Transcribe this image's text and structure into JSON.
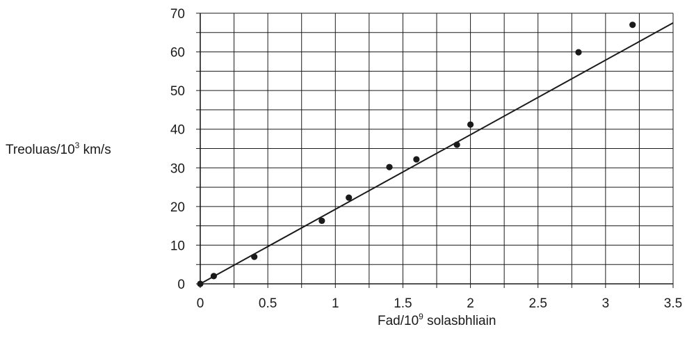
{
  "chart_data": {
    "type": "scatter",
    "title": "",
    "xlabel": {
      "prefix": "Fad/10",
      "sup": "9",
      "suffix": " solasbhliain"
    },
    "ylabel": {
      "prefix": "Treoluas/10",
      "sup": "3",
      "suffix": " km/s"
    },
    "xlim": [
      0,
      3.5
    ],
    "ylim": [
      0,
      70
    ],
    "x_ticks": [
      0,
      0.5,
      1,
      1.5,
      2,
      2.5,
      3,
      3.5
    ],
    "x_tick_labels": [
      "0",
      "0.5",
      "1",
      "1.5",
      "2",
      "2.5",
      "3",
      "3.5"
    ],
    "y_ticks": [
      0,
      10,
      20,
      30,
      40,
      50,
      60,
      70
    ],
    "y_tick_labels": [
      "0",
      "10",
      "20",
      "30",
      "40",
      "50",
      "60",
      "70"
    ],
    "grid": true,
    "x_minor_step": 0.25,
    "y_minor_step": 5,
    "points": [
      {
        "x": 0,
        "y": 0
      },
      {
        "x": 0.1,
        "y": 2
      },
      {
        "x": 0.4,
        "y": 7
      },
      {
        "x": 0.9,
        "y": 16.3
      },
      {
        "x": 1.1,
        "y": 22.3
      },
      {
        "x": 1.4,
        "y": 30.2
      },
      {
        "x": 1.6,
        "y": 32.2
      },
      {
        "x": 1.9,
        "y": 36
      },
      {
        "x": 2.0,
        "y": 41.2
      },
      {
        "x": 2.8,
        "y": 59.9
      },
      {
        "x": 3.2,
        "y": 67
      }
    ],
    "fit_line": {
      "x": [
        0,
        3.5
      ],
      "y": [
        0,
        67.5
      ]
    }
  }
}
